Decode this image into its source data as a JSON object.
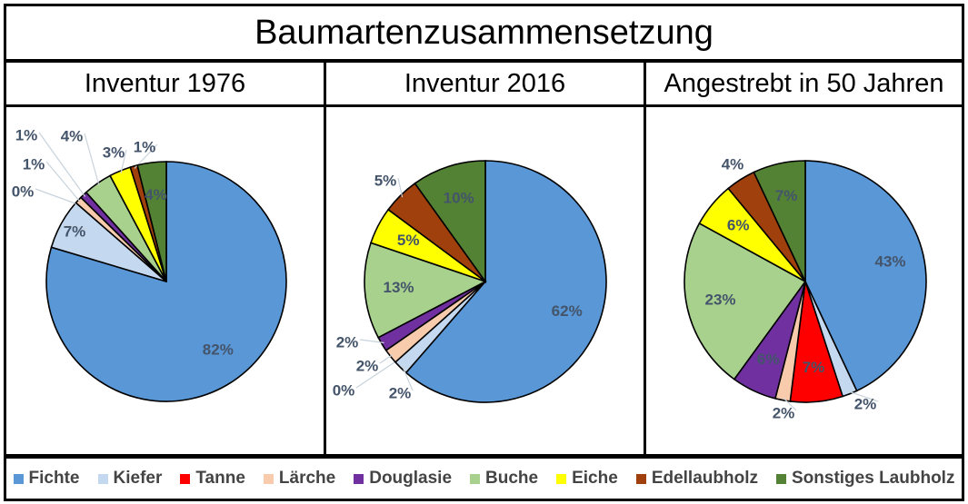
{
  "title": "Baumartenzusammensetzung",
  "colors": {
    "Fichte": "#5a97d6",
    "Kiefer": "#c4d9ef",
    "Tanne": "#ff0000",
    "Lärche": "#f8cbad",
    "Douglasie": "#7030a0",
    "Buche": "#a9d18e",
    "Eiche": "#ffff00",
    "Edellaubholz": "#a0410d",
    "Sonstiges Laubholz": "#548235"
  },
  "chart_data": [
    {
      "type": "pie",
      "title": "Inventur 1976",
      "categories": [
        "Fichte",
        "Kiefer",
        "Tanne",
        "Lärche",
        "Douglasie",
        "Buche",
        "Eiche",
        "Edellaubholz",
        "Sonstiges Laubholz"
      ],
      "values": [
        82,
        7,
        0,
        1,
        1,
        4,
        3,
        1,
        4
      ],
      "labels": [
        "82%",
        "7%",
        "0%",
        "1%",
        "1%",
        "4%",
        "3%",
        "1%",
        "4%"
      ]
    },
    {
      "type": "pie",
      "title": "Inventur 2016",
      "categories": [
        "Fichte",
        "Kiefer",
        "Tanne",
        "Lärche",
        "Douglasie",
        "Buche",
        "Eiche",
        "Edellaubholz",
        "Sonstiges Laubholz"
      ],
      "values": [
        62,
        2,
        0,
        2,
        2,
        13,
        5,
        5,
        10
      ],
      "labels": [
        "62%",
        "2%",
        "0%",
        "2%",
        "2%",
        "13%",
        "5%",
        "5%",
        "10%"
      ]
    },
    {
      "type": "pie",
      "title": "Angestrebt in 50 Jahren",
      "categories": [
        "Fichte",
        "Kiefer",
        "Tanne",
        "Lärche",
        "Douglasie",
        "Buche",
        "Eiche",
        "Edellaubholz",
        "Sonstiges Laubholz"
      ],
      "values": [
        43,
        2,
        7,
        2,
        6,
        23,
        6,
        4,
        7
      ],
      "labels": [
        "43%",
        "2%",
        "7%",
        "2%",
        "6%",
        "23%",
        "6%",
        "4%",
        "7%"
      ]
    }
  ],
  "legend": {
    "position": "bottom",
    "entries": [
      "Fichte",
      "Kiefer",
      "Tanne",
      "Lärche",
      "Douglasie",
      "Buche",
      "Eiche",
      "Edellaubholz",
      "Sonstiges Laubholz"
    ]
  }
}
